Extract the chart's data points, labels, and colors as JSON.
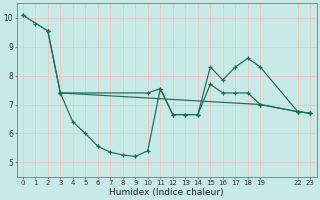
{
  "xlabel": "Humidex (Indice chaleur)",
  "background_color": "#c8eae6",
  "grid_color": "#e8c8c8",
  "line_color": "#1a6b5a",
  "x_ticks": [
    0,
    1,
    2,
    3,
    4,
    5,
    6,
    7,
    8,
    9,
    10,
    11,
    12,
    13,
    14,
    15,
    16,
    17,
    18,
    19,
    22,
    23
  ],
  "yticks": [
    5,
    6,
    7,
    8,
    9,
    10
  ],
  "ylim": [
    4.5,
    10.5
  ],
  "xlim": [
    -0.5,
    23.5
  ],
  "series": [
    {
      "x": [
        0,
        1,
        2
      ],
      "y": [
        10.1,
        9.8,
        9.55
      ],
      "dotted": true
    },
    {
      "x": [
        0,
        2,
        3,
        4,
        5,
        6,
        7,
        8,
        9,
        10,
        11,
        12,
        13,
        14,
        15,
        16,
        17,
        18,
        19,
        22,
        23
      ],
      "y": [
        10.1,
        9.55,
        7.4,
        6.4,
        6.0,
        5.55,
        5.35,
        5.25,
        5.2,
        5.4,
        7.55,
        6.65,
        6.65,
        6.65,
        8.3,
        7.85,
        8.3,
        8.6,
        8.3,
        6.75,
        6.7
      ],
      "dotted": false
    },
    {
      "x": [
        2,
        3,
        19,
        22,
        23
      ],
      "y": [
        9.55,
        7.4,
        7.0,
        6.75,
        6.7
      ],
      "dotted": false
    },
    {
      "x": [
        3,
        10,
        11,
        12,
        13,
        14,
        15,
        16,
        17,
        18,
        19,
        22,
        23
      ],
      "y": [
        7.4,
        7.4,
        7.55,
        6.65,
        6.65,
        6.65,
        7.7,
        7.4,
        7.4,
        7.4,
        7.0,
        6.75,
        6.7
      ],
      "dotted": false
    }
  ]
}
